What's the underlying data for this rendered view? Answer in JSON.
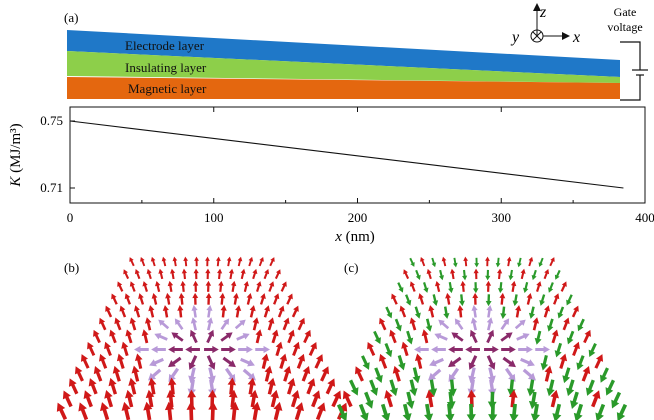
{
  "figure": {
    "panel_a_label": "(a)",
    "panel_b_label": "(b)",
    "panel_c_label": "(c)",
    "layers": {
      "electrode": "Electrode layer",
      "insulating": "Insulating layer",
      "magnetic": "Magnetic layer"
    },
    "axes_triad": {
      "z": "z",
      "y": "y",
      "x": "x"
    },
    "gate_label_line1": "Gate",
    "gate_label_line2": "voltage",
    "colors": {
      "electrode": "#1f78c8",
      "insulating": "#8dcf4a",
      "magnetic": "#e4670f",
      "spin_up": "#d01818",
      "spin_down": "#2a9a2a",
      "in_plane": "#b89ad8"
    }
  },
  "chart_data": {
    "type": "line",
    "x": [
      0,
      385
    ],
    "series": [
      {
        "values": [
          0.75,
          0.71
        ]
      }
    ],
    "xlabel_italic": "x",
    "xlabel_unit": " (nm)",
    "ylabel_italic": "K",
    "ylabel_unit": " (MJ/m³)",
    "xlim": [
      0,
      400
    ],
    "ylim": [
      0.71,
      0.75
    ],
    "xticks": [
      0,
      100,
      200,
      300,
      400
    ],
    "xtick_labels": [
      "0",
      "100",
      "200",
      "300",
      "400"
    ],
    "yticks": [
      0.71,
      0.75
    ],
    "ytick_labels": [
      "0.71",
      "0.75"
    ],
    "grid": false
  }
}
